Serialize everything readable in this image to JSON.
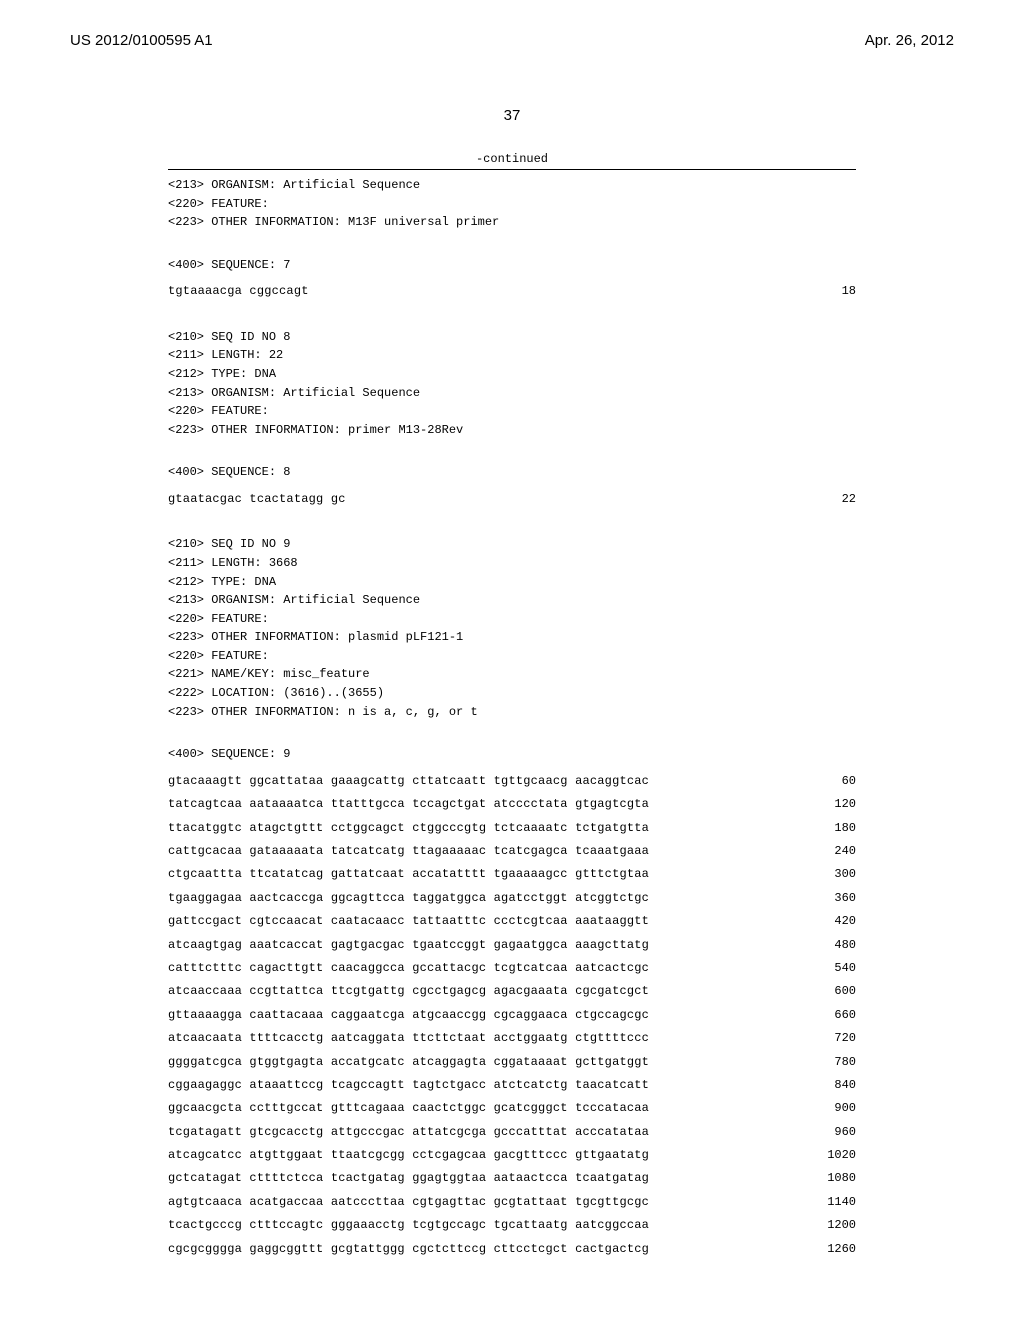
{
  "header": {
    "pubNumber": "US 2012/0100595 A1",
    "pubDate": "Apr. 26, 2012"
  },
  "pageNumber": "37",
  "continuedLabel": "-continued",
  "blocks": [
    {
      "meta": [
        "<213> ORGANISM: Artificial Sequence",
        "<220> FEATURE:",
        "<223> OTHER INFORMATION: M13F universal primer"
      ],
      "seqLabel": "<400> SEQUENCE: 7",
      "rows": [
        {
          "seq": "tgtaaaacga cggccagt",
          "pos": "18"
        }
      ]
    },
    {
      "meta": [
        "<210> SEQ ID NO 8",
        "<211> LENGTH: 22",
        "<212> TYPE: DNA",
        "<213> ORGANISM: Artificial Sequence",
        "<220> FEATURE:",
        "<223> OTHER INFORMATION: primer M13-28Rev"
      ],
      "seqLabel": "<400> SEQUENCE: 8",
      "rows": [
        {
          "seq": "gtaatacgac tcactatagg gc",
          "pos": "22"
        }
      ]
    },
    {
      "meta": [
        "<210> SEQ ID NO 9",
        "<211> LENGTH: 3668",
        "<212> TYPE: DNA",
        "<213> ORGANISM: Artificial Sequence",
        "<220> FEATURE:",
        "<223> OTHER INFORMATION: plasmid pLF121-1",
        "<220> FEATURE:",
        "<221> NAME/KEY: misc_feature",
        "<222> LOCATION: (3616)..(3655)",
        "<223> OTHER INFORMATION: n is a, c, g, or t"
      ],
      "seqLabel": "<400> SEQUENCE: 9",
      "rows": [
        {
          "seq": "gtacaaagtt ggcattataa gaaagcattg cttatcaatt tgttgcaacg aacaggtcac",
          "pos": "60"
        },
        {
          "seq": "tatcagtcaa aataaaatca ttatttgcca tccagctgat atcccctata gtgagtcgta",
          "pos": "120"
        },
        {
          "seq": "ttacatggtc atagctgttt cctggcagct ctggcccgtg tctcaaaatc tctgatgtta",
          "pos": "180"
        },
        {
          "seq": "cattgcacaa gataaaaata tatcatcatg ttagaaaaac tcatcgagca tcaaatgaaa",
          "pos": "240"
        },
        {
          "seq": "ctgcaattta ttcatatcag gattatcaat accatatttt tgaaaaagcc gtttctgtaa",
          "pos": "300"
        },
        {
          "seq": "tgaaggagaa aactcaccga ggcagttcca taggatggca agatcctggt atcggtctgc",
          "pos": "360"
        },
        {
          "seq": "gattccgact cgtccaacat caatacaacc tattaatttc ccctcgtcaa aaataaggtt",
          "pos": "420"
        },
        {
          "seq": "atcaagtgag aaatcaccat gagtgacgac tgaatccggt gagaatggca aaagcttatg",
          "pos": "480"
        },
        {
          "seq": "catttctttc cagacttgtt caacaggcca gccattacgc tcgtcatcaa aatcactcgc",
          "pos": "540"
        },
        {
          "seq": "atcaaccaaa ccgttattca ttcgtgattg cgcctgagcg agacgaaata cgcgatcgct",
          "pos": "600"
        },
        {
          "seq": "gttaaaagga caattacaaa caggaatcga atgcaaccgg cgcaggaaca ctgccagcgc",
          "pos": "660"
        },
        {
          "seq": "atcaacaata ttttcacctg aatcaggata ttcttctaat acctggaatg ctgttttccc",
          "pos": "720"
        },
        {
          "seq": "ggggatcgca gtggtgagta accatgcatc atcaggagta cggataaaat gcttgatggt",
          "pos": "780"
        },
        {
          "seq": "cggaagaggc ataaattccg tcagccagtt tagtctgacc atctcatctg taacatcatt",
          "pos": "840"
        },
        {
          "seq": "ggcaacgcta cctttgccat gtttcagaaa caactctggc gcatcgggct tcccatacaa",
          "pos": "900"
        },
        {
          "seq": "tcgatagatt gtcgcacctg attgcccgac attatcgcga gcccatttat acccatataa",
          "pos": "960"
        },
        {
          "seq": "atcagcatcc atgttggaat ttaatcgcgg cctcgagcaa gacgtttccc gttgaatatg",
          "pos": "1020"
        },
        {
          "seq": "gctcatagat cttttctcca tcactgatag ggagtggtaa aataactcca tcaatgatag",
          "pos": "1080"
        },
        {
          "seq": "agtgtcaaca acatgaccaa aatcccttaa cgtgagttac gcgtattaat tgcgttgcgc",
          "pos": "1140"
        },
        {
          "seq": "tcactgcccg ctttccagtc gggaaacctg tcgtgccagc tgcattaatg aatcggccaa",
          "pos": "1200"
        },
        {
          "seq": "cgcgcgggga gaggcggttt gcgtattggg cgctcttccg cttcctcgct cactgactcg",
          "pos": "1260"
        }
      ]
    }
  ],
  "style": {
    "background": "#ffffff",
    "monoFont": "Courier New",
    "seqFontSize": 12,
    "headerFontSize": 15
  }
}
